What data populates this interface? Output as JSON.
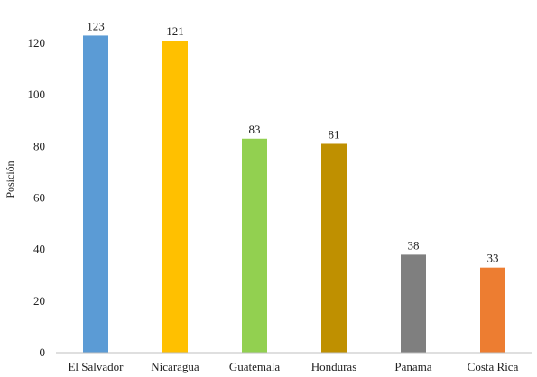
{
  "chart_data": {
    "type": "bar",
    "categories": [
      "El Salvador",
      "Nicaragua",
      "Guatemala",
      "Honduras",
      "Panama",
      "Costa Rica"
    ],
    "values": [
      123,
      121,
      83,
      81,
      38,
      33
    ],
    "colors": [
      "#5b9bd5",
      "#ffc000",
      "#92d050",
      "#bf9000",
      "#7f7f7f",
      "#ed7d31"
    ],
    "title": "",
    "xlabel": "",
    "ylabel": "Posición",
    "ylim": [
      0,
      120
    ],
    "yticks": [
      0,
      20,
      40,
      60,
      80,
      100,
      120
    ],
    "grid": false,
    "legend": "none",
    "data_labels": true
  }
}
